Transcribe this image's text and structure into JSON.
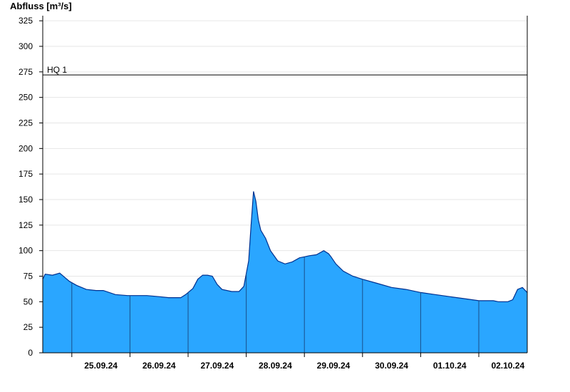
{
  "chart_data": {
    "type": "area",
    "ylabel": "Abfluss [m³/s]",
    "ylim": [
      0,
      330
    ],
    "yticks": [
      0,
      25,
      50,
      75,
      100,
      125,
      150,
      175,
      200,
      225,
      250,
      275,
      300,
      325
    ],
    "xlim": [
      "24.09.24 12:00",
      "02.10.24 20:00"
    ],
    "date_labels": [
      "25.09.24",
      "26.09.24",
      "27.09.24",
      "28.09.24",
      "29.09.24",
      "30.09.24",
      "01.10.24",
      "02.10.24"
    ],
    "reference_line": {
      "label": "HQ 1",
      "value": 272
    },
    "grid": true,
    "fill_color": "#2aa6ff",
    "line_color": "#00308f",
    "series": [
      {
        "x": [
          "24.09.24 12:00",
          "24.09.24 13:00",
          "24.09.24 16:00",
          "24.09.24 19:00",
          "24.09.24 21:00",
          "24.09.24 23:00",
          "25.09.24 02:00",
          "25.09.24 06:00",
          "25.09.24 10:00",
          "25.09.24 13:00",
          "25.09.24 18:00",
          "25.09.24 23:00",
          "26.09.24 02:00",
          "26.09.24 07:00",
          "26.09.24 12:00",
          "26.09.24 16:00",
          "26.09.24 21:00",
          "26.09.24 23:00",
          "27.09.24 02:00",
          "27.09.24 04:00",
          "27.09.24 06:00",
          "27.09.24 08:00",
          "27.09.24 10:00",
          "27.09.24 12:00",
          "27.09.24 14:00",
          "27.09.24 18:00",
          "27.09.24 21:00",
          "27.09.24 23:00",
          "28.09.24 01:00",
          "28.09.24 02:00",
          "28.09.24 03:00",
          "28.09.24 04:00",
          "28.09.24 05:00",
          "28.09.24 06:00",
          "28.09.24 08:00",
          "28.09.24 10:00",
          "28.09.24 13:00",
          "28.09.24 16:00",
          "28.09.24 19:00",
          "28.09.24 22:00",
          "29.09.24 00:00",
          "29.09.24 02:00",
          "29.09.24 05:00",
          "29.09.24 08:00",
          "29.09.24 10:00",
          "29.09.24 11:00",
          "29.09.24 13:00",
          "29.09.24 16:00",
          "29.09.24 20:00",
          "30.09.24 00:00",
          "30.09.24 06:00",
          "30.09.24 12:00",
          "30.09.24 18:00",
          "01.10.24 00:00",
          "01.10.24 06:00",
          "01.10.24 12:00",
          "01.10.24 18:00",
          "02.10.24 00:00",
          "02.10.24 06:00",
          "02.10.24 08:00",
          "02.10.24 10:00",
          "02.10.24 12:00",
          "02.10.24 14:00",
          "02.10.24 16:00",
          "02.10.24 18:00",
          "02.10.24 20:00"
        ],
        "y": [
          72,
          77,
          76,
          78,
          74,
          70,
          66,
          62,
          61,
          61,
          57,
          56,
          56,
          56,
          55,
          54,
          54,
          57,
          63,
          72,
          76,
          76,
          75,
          67,
          62,
          60,
          60,
          65,
          90,
          125,
          158,
          148,
          130,
          120,
          112,
          100,
          90,
          87,
          89,
          93,
          94,
          95,
          96,
          100,
          97,
          94,
          87,
          80,
          75,
          72,
          68,
          64,
          62,
          59,
          57,
          55,
          53,
          51,
          51,
          50,
          50,
          50,
          52,
          62,
          64,
          59
        ]
      }
    ]
  }
}
